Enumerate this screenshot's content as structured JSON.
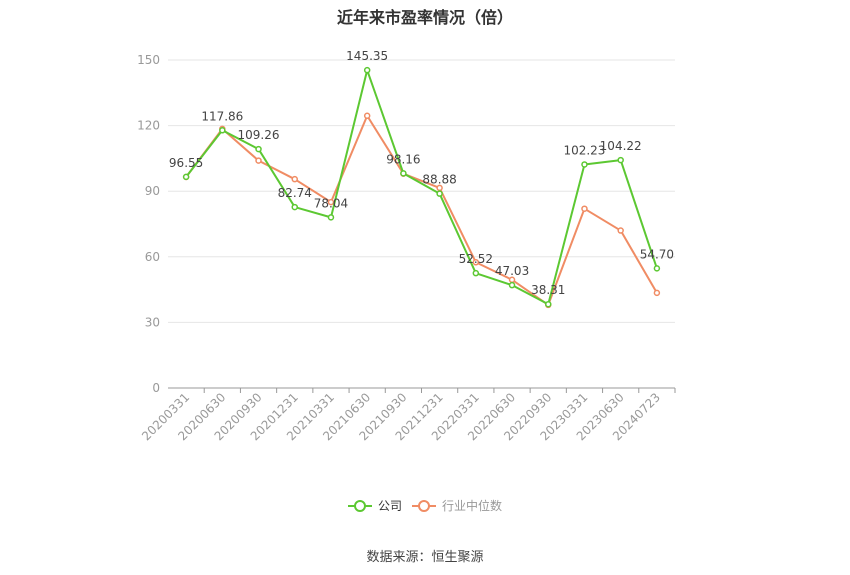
{
  "title": "近年来市盈率情况（倍）",
  "source_text": "数据来源：恒生聚源",
  "colors": {
    "company": "#5cc832",
    "industry": "#f08c64",
    "grid": "#e6e6e6",
    "axis": "#999999",
    "tick_text": "#999999",
    "label_text": "#444444"
  },
  "chart_data": {
    "type": "line",
    "title": "近年来市盈率情况（倍）",
    "xlabel": "",
    "ylabel": "",
    "ylim": [
      0,
      150
    ],
    "yticks": [
      0,
      30,
      60,
      90,
      120,
      150
    ],
    "grid": true,
    "legend_position": "bottom",
    "categories": [
      "20200331",
      "20200630",
      "20200930",
      "20201231",
      "20210331",
      "20210630",
      "20210930",
      "20211231",
      "20220331",
      "20220630",
      "20220930",
      "20230331",
      "20230630",
      "20240723"
    ],
    "series": [
      {
        "name": "公司",
        "color": "#5cc832",
        "values": [
          96.55,
          117.86,
          109.26,
          82.74,
          78.04,
          145.35,
          98.16,
          88.88,
          52.52,
          47.03,
          38.31,
          102.23,
          104.22,
          54.7
        ],
        "labels": [
          "96.55",
          "117.86",
          "109.26",
          "82.74",
          "78.04",
          "145.35",
          "98.16",
          "88.88",
          "52.52",
          "47.03",
          "38.31",
          "102.23",
          "104.22",
          "54.70"
        ]
      },
      {
        "name": "行业中位数",
        "color": "#f08c64",
        "values": [
          96.5,
          118.5,
          104.0,
          95.5,
          85.0,
          124.5,
          98.0,
          91.5,
          57.5,
          49.5,
          38.0,
          82.0,
          72.0,
          43.5
        ]
      }
    ]
  }
}
